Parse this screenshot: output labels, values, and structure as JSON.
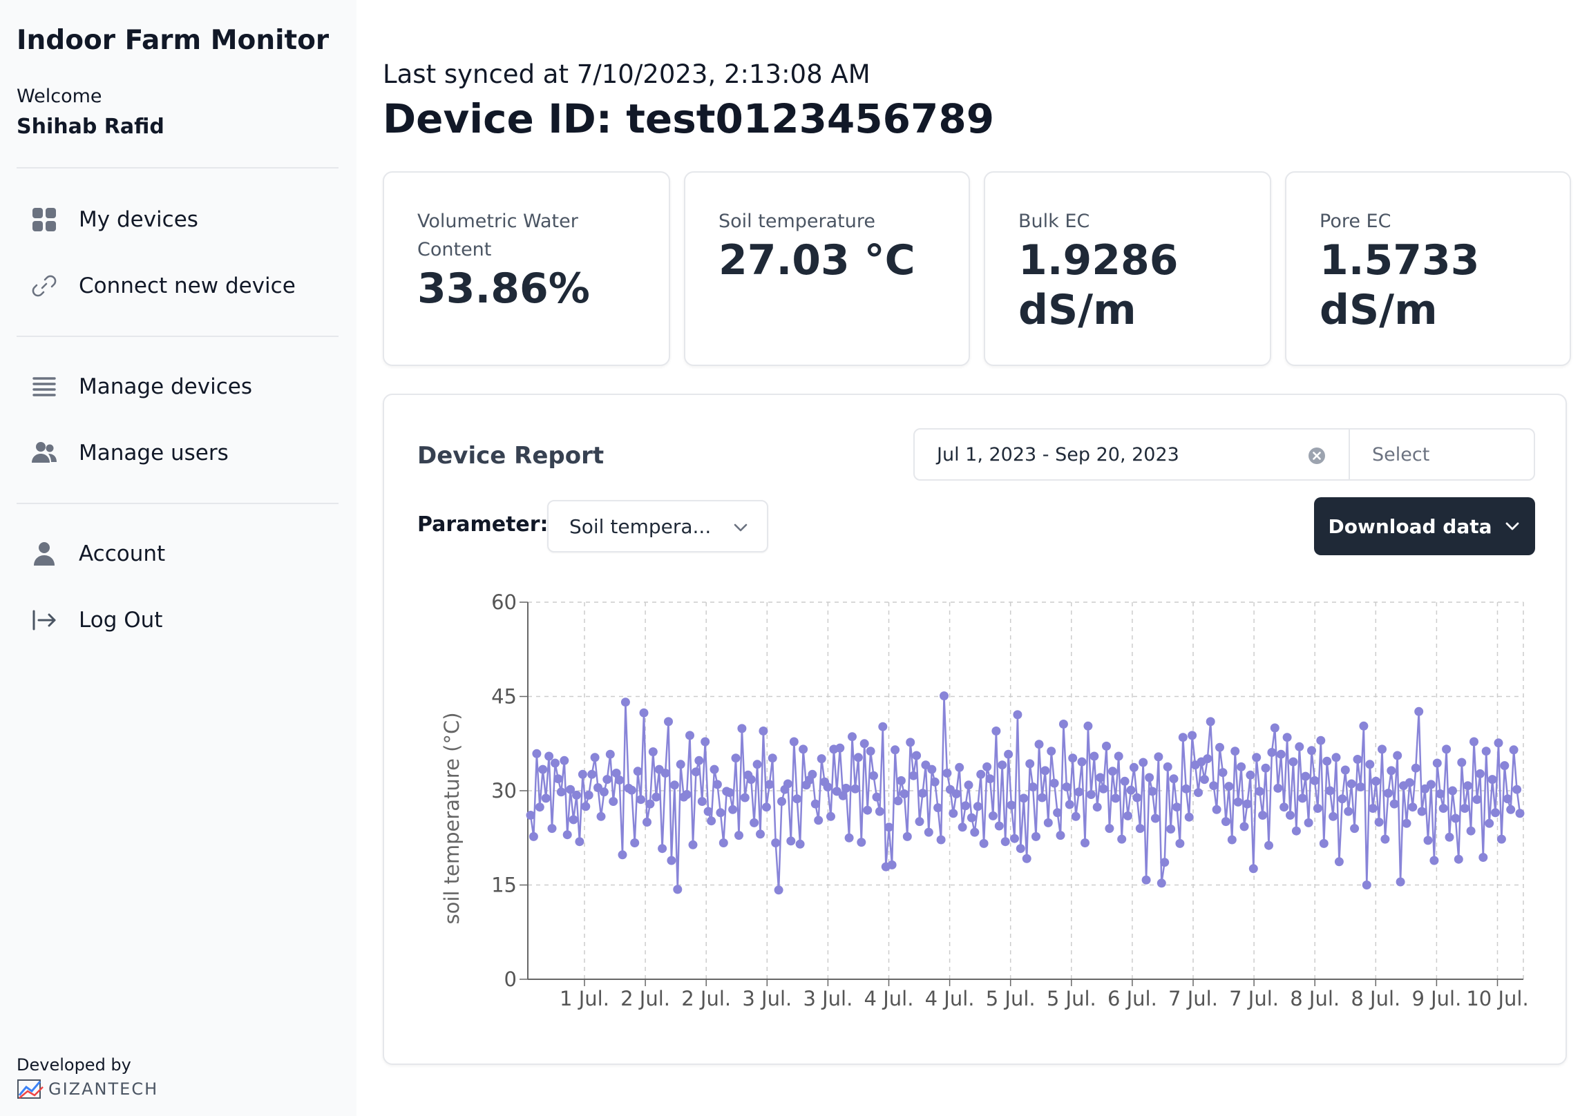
{
  "sidebar": {
    "app_title": "Indoor Farm Monitor",
    "welcome": "Welcome",
    "user_name": "Shihab Rafid",
    "nav": [
      {
        "label": "My devices",
        "icon": "grid-icon"
      },
      {
        "label": "Connect new device",
        "icon": "link-icon"
      },
      {
        "label": "Manage devices",
        "icon": "list-icon"
      },
      {
        "label": "Manage users",
        "icon": "users-icon"
      },
      {
        "label": "Account",
        "icon": "user-icon"
      },
      {
        "label": "Log Out",
        "icon": "logout-icon"
      }
    ],
    "developed_by": "Developed by",
    "logo_text": "GIZANTECH"
  },
  "header": {
    "synced": "Last synced at 7/10/2023, 2:13:08 AM",
    "device_id": "Device ID: test0123456789"
  },
  "cards": [
    {
      "label": "Volumetric Water Content",
      "value": "33.86%"
    },
    {
      "label": "Soil temperature",
      "value": "27.03 °C"
    },
    {
      "label": "Bulk EC",
      "value": "1.9286 dS/m"
    },
    {
      "label": "Pore EC",
      "value": "1.5733 dS/m"
    }
  ],
  "report": {
    "title": "Device Report",
    "date_range": "Jul 1, 2023 - Sep 20, 2023",
    "date_select_placeholder": "Select",
    "parameter_label": "Parameter:",
    "parameter_value": "Soil tempera...",
    "download_label": "Download data"
  },
  "colors": {
    "series": "#8884d8",
    "dark_button": "#1f2937",
    "sidebar_bg": "#f9fafb"
  },
  "chart_data": {
    "type": "line",
    "ylabel": "soil temperature (°C)",
    "ylim": [
      0,
      60
    ],
    "yticks": [
      0,
      15,
      30,
      45,
      60
    ],
    "xtick_labels": [
      "1 Jul.",
      "2 Jul.",
      "2 Jul.",
      "3 Jul.",
      "3 Jul.",
      "4 Jul.",
      "4 Jul.",
      "5 Jul.",
      "5 Jul.",
      "6 Jul.",
      "7 Jul.",
      "7 Jul.",
      "8 Jul.",
      "8 Jul.",
      "9 Jul.",
      "10 Jul."
    ],
    "grid": true,
    "series": [
      {
        "values": [
          26.1,
          22.7,
          35.9,
          27.4,
          33.4,
          28.8,
          35.5,
          24.0,
          34.4,
          31.9,
          29.8,
          34.8,
          23.0,
          30.2,
          25.4,
          29.3,
          21.9,
          32.6,
          27.5,
          29.3,
          32.6,
          35.3,
          30.5,
          25.9,
          29.8,
          31.8,
          35.8,
          28.3,
          32.8,
          31.7,
          19.8,
          44.1,
          30.4,
          30.1,
          21.7,
          33.1,
          28.6,
          42.4,
          25.0,
          27.9,
          36.2,
          29.0,
          33.4,
          20.8,
          32.8,
          41.0,
          18.9,
          30.9,
          14.3,
          34.2,
          29.0,
          29.4,
          38.8,
          21.4,
          33.0,
          34.8,
          28.3,
          37.8,
          26.7,
          25.2,
          33.4,
          31.0,
          26.5,
          21.7,
          29.9,
          29.7,
          27.0,
          35.2,
          22.9,
          39.9,
          28.9,
          32.5,
          31.8,
          24.9,
          34.2,
          23.1,
          39.5,
          27.4,
          31.0,
          35.2,
          21.7,
          14.2,
          28.3,
          30.2,
          31.1,
          22.0,
          37.8,
          28.7,
          21.5,
          36.6,
          30.9,
          31.7,
          32.6,
          27.9,
          25.3,
          35.1,
          31.4,
          30.6,
          25.9,
          36.6,
          29.9,
          36.8,
          29.2,
          30.4,
          22.5,
          38.6,
          30.3,
          35.3,
          21.8,
          37.5,
          26.9,
          36.3,
          32.4,
          29.0,
          26.7,
          40.2,
          17.9,
          24.2,
          18.2,
          36.5,
          28.4,
          31.6,
          29.5,
          22.7,
          37.7,
          32.4,
          35.6,
          25.1,
          29.6,
          34.1,
          23.4,
          33.4,
          31.4,
          27.3,
          22.2,
          45.1,
          32.8,
          30.2,
          26.4,
          29.5,
          33.7,
          24.2,
          27.6,
          30.9,
          25.7,
          23.4,
          27.5,
          32.6,
          21.6,
          33.8,
          31.9,
          26.0,
          39.5,
          24.4,
          34.1,
          21.9,
          35.8,
          27.7,
          22.4,
          42.1,
          20.8,
          28.8,
          19.2,
          34.3,
          30.6,
          22.7,
          37.4,
          28.9,
          33.2,
          24.9,
          36.3,
          31.2,
          26.5,
          22.9,
          40.6,
          30.6,
          27.8,
          35.2,
          25.9,
          29.8,
          34.6,
          21.7,
          40.3,
          29.4,
          35.5,
          27.4,
          32.1,
          30.3,
          37.1,
          24.0,
          33.1,
          28.8,
          35.5,
          22.3,
          31.5,
          26.0,
          30.1,
          33.7,
          28.9,
          24.0,
          34.5,
          15.8,
          32.1,
          29.9,
          25.6,
          35.4,
          15.3,
          18.6,
          33.8,
          23.9,
          31.9,
          27.4,
          21.6,
          38.5,
          30.3,
          25.8,
          38.8,
          34.1,
          29.7,
          34.6,
          31.8,
          35.1,
          41.0,
          30.8,
          27.0,
          36.9,
          32.9,
          25.1,
          30.7,
          22.2,
          36.3,
          28.2,
          33.8,
          24.3,
          27.9,
          32.5,
          17.6,
          35.3,
          29.9,
          26.1,
          33.6,
          21.3,
          36.1,
          40.0,
          30.4,
          35.8,
          27.4,
          38.5,
          26.1,
          34.6,
          23.6,
          37.0,
          28.8,
          32.3,
          24.9,
          36.4,
          31.6,
          27.2,
          38.0,
          21.6,
          34.7,
          30.0,
          25.9,
          35.3,
          18.7,
          28.7,
          33.3,
          26.7,
          31.1,
          24.0,
          35.0,
          30.6,
          40.3,
          15.0,
          34.2,
          27.2,
          31.5,
          25.0,
          36.6,
          22.3,
          29.6,
          33.2,
          27.9,
          35.6,
          15.5,
          30.8,
          24.8,
          31.3,
          27.4,
          33.6,
          42.6,
          26.7,
          30.3,
          22.1,
          31.0,
          18.9,
          34.4,
          29.5,
          27.2,
          36.6,
          22.6,
          30.0,
          25.6,
          19.1,
          34.5,
          27.2,
          30.8,
          23.6,
          37.8,
          28.6,
          32.7,
          19.4,
          36.3,
          24.8,
          31.8,
          26.5,
          37.6,
          22.3,
          34.0,
          28.7,
          27.0,
          36.5,
          30.2,
          26.4
        ],
        "color": "#8884d8"
      }
    ]
  }
}
